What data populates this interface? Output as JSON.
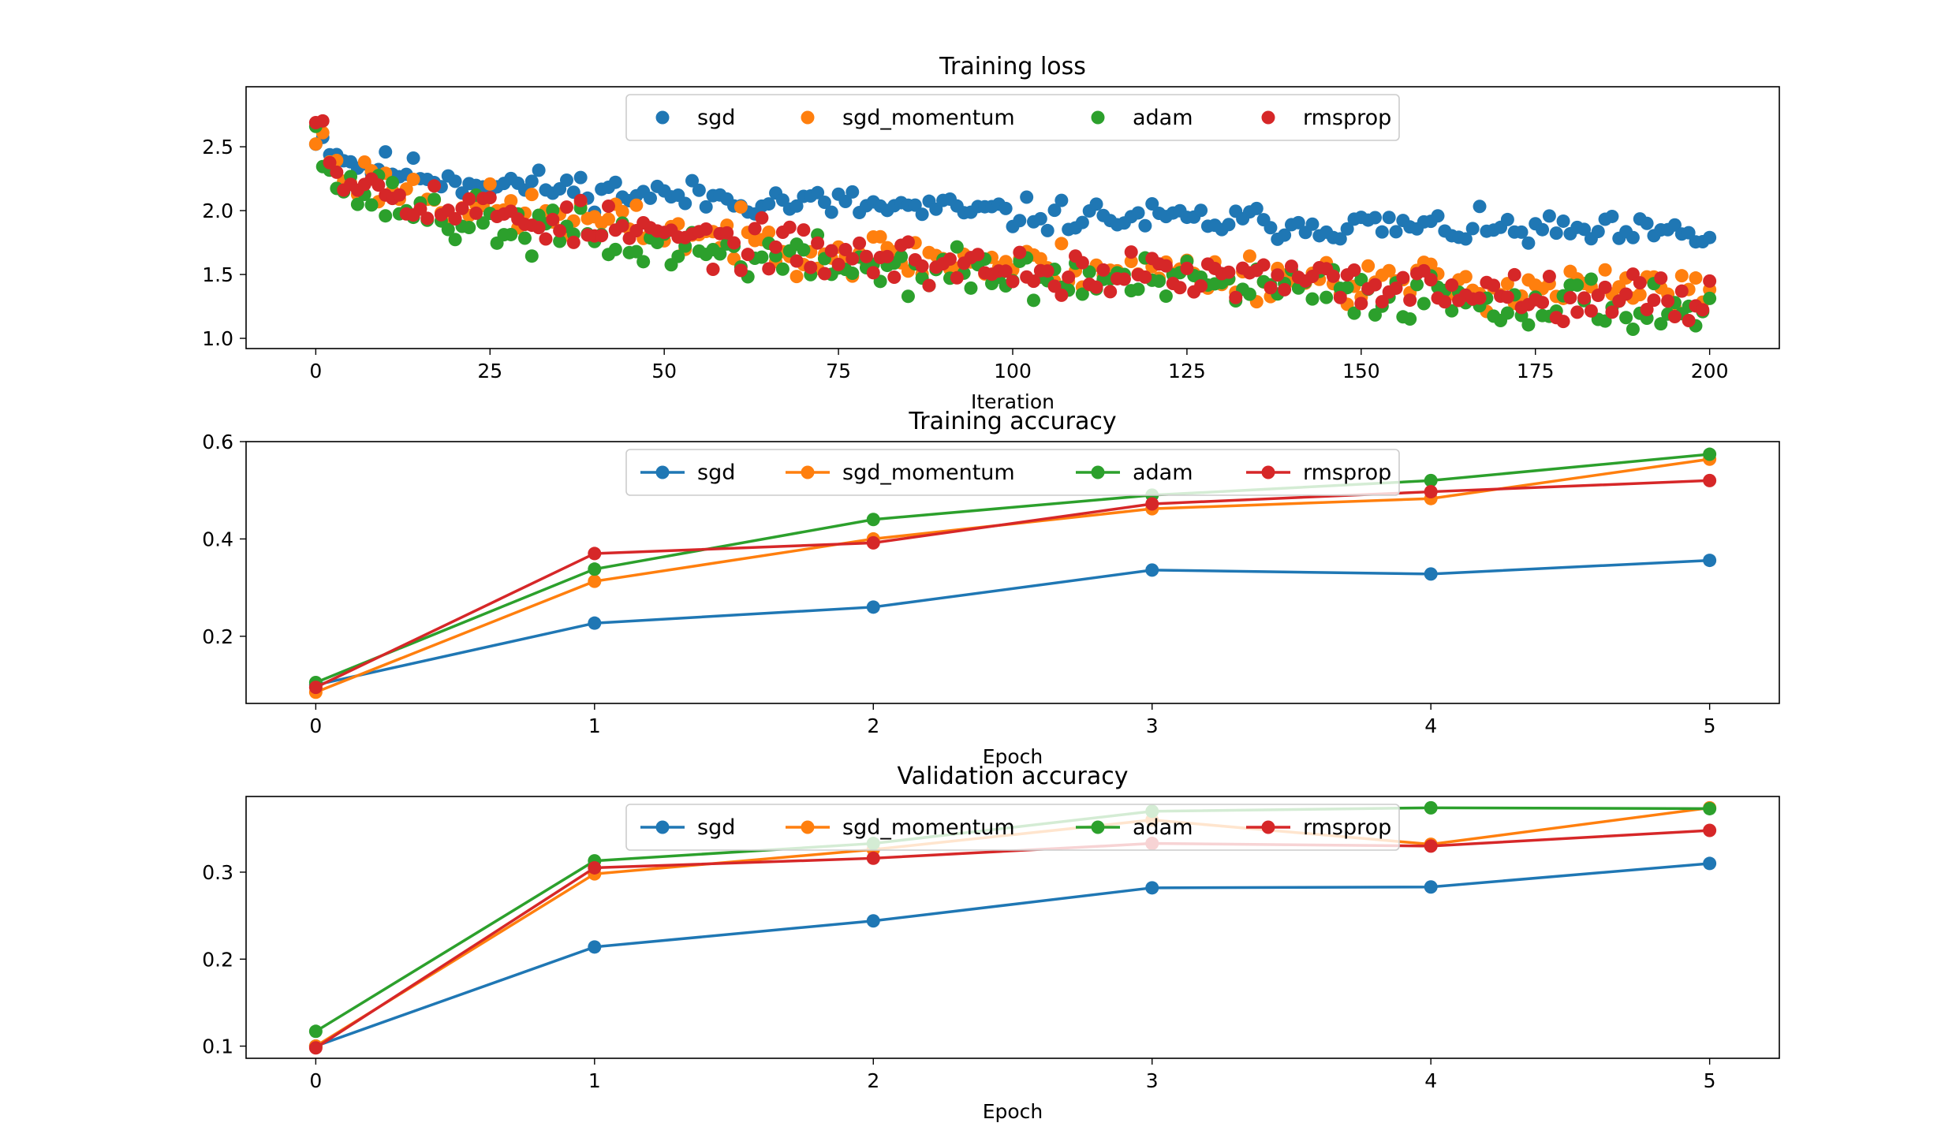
{
  "colors": {
    "sgd": "#1f77b4",
    "sgd_momentum": "#ff7f0e",
    "adam": "#2ca02c",
    "rmsprop": "#d62728",
    "frame": "#000000",
    "legend_edge": "#cccccc"
  },
  "chart_data": [
    {
      "type": "scatter",
      "title": "Training loss",
      "xlabel": "Iteration",
      "ylabel": "",
      "xlim": [
        -10,
        210
      ],
      "ylim": [
        0.92,
        2.97
      ],
      "xticks": [
        0,
        25,
        50,
        75,
        100,
        125,
        150,
        175,
        200
      ],
      "yticks": [
        1.0,
        1.5,
        2.0,
        2.5
      ],
      "ytick_labels": [
        "1.0",
        "1.5",
        "2.0",
        "2.5"
      ],
      "grid": false,
      "legend": "upper-center",
      "legend_entries": [
        "sgd",
        "sgd_momentum",
        "adam",
        "rmsprop"
      ],
      "series": [
        {
          "name": "sgd",
          "key": "sgd",
          "trend": [
            [
              0,
              2.6
            ],
            [
              5,
              2.38
            ],
            [
              20,
              2.24
            ],
            [
              50,
              2.12
            ],
            [
              75,
              2.05
            ],
            [
              100,
              1.97
            ],
            [
              150,
              1.88
            ],
            [
              200,
              1.8
            ]
          ],
          "spread": 0.09,
          "seed": 11
        },
        {
          "name": "sgd_momentum",
          "key": "sgd_momentum",
          "trend": [
            [
              0,
              2.58
            ],
            [
              4,
              2.3
            ],
            [
              20,
              2.05
            ],
            [
              50,
              1.85
            ],
            [
              75,
              1.68
            ],
            [
              100,
              1.58
            ],
            [
              150,
              1.45
            ],
            [
              200,
              1.35
            ]
          ],
          "spread": 0.13,
          "seed": 23
        },
        {
          "name": "adam",
          "key": "adam",
          "trend": [
            [
              0,
              2.75
            ],
            [
              3,
              2.2
            ],
            [
              20,
              1.92
            ],
            [
              50,
              1.72
            ],
            [
              75,
              1.58
            ],
            [
              100,
              1.48
            ],
            [
              150,
              1.36
            ],
            [
              200,
              1.22
            ]
          ],
          "spread": 0.14,
          "seed": 37
        },
        {
          "name": "rmsprop",
          "key": "rmsprop",
          "trend": [
            [
              0,
              2.88
            ],
            [
              3,
              2.3
            ],
            [
              20,
              2.02
            ],
            [
              50,
              1.8
            ],
            [
              75,
              1.65
            ],
            [
              100,
              1.53
            ],
            [
              150,
              1.42
            ],
            [
              200,
              1.3
            ]
          ],
          "spread": 0.13,
          "seed": 53
        }
      ]
    },
    {
      "type": "line",
      "title": "Training accuracy",
      "xlabel": "Epoch",
      "ylabel": "",
      "x": [
        0,
        1,
        2,
        3,
        4,
        5
      ],
      "xlim": [
        -0.25,
        5.25
      ],
      "ylim": [
        0.062,
        0.6
      ],
      "xticks": [
        0,
        1,
        2,
        3,
        4,
        5
      ],
      "yticks": [
        0.2,
        0.4,
        0.6
      ],
      "ytick_labels": [
        "0.2",
        "0.4",
        "0.6"
      ],
      "grid": false,
      "legend": "upper-center",
      "series": [
        {
          "name": "sgd",
          "key": "sgd",
          "values": [
            0.1,
            0.227,
            0.26,
            0.336,
            0.328,
            0.356
          ]
        },
        {
          "name": "sgd_momentum",
          "key": "sgd_momentum",
          "values": [
            0.085,
            0.313,
            0.4,
            0.462,
            0.483,
            0.564
          ]
        },
        {
          "name": "adam",
          "key": "adam",
          "values": [
            0.105,
            0.338,
            0.44,
            0.49,
            0.52,
            0.574
          ]
        },
        {
          "name": "rmsprop",
          "key": "rmsprop",
          "values": [
            0.095,
            0.37,
            0.392,
            0.472,
            0.497,
            0.52
          ]
        }
      ]
    },
    {
      "type": "line",
      "title": "Validation accuracy",
      "xlabel": "Epoch",
      "ylabel": "",
      "x": [
        0,
        1,
        2,
        3,
        4,
        5
      ],
      "xlim": [
        -0.25,
        5.25
      ],
      "ylim": [
        0.086,
        0.387
      ],
      "xticks": [
        0,
        1,
        2,
        3,
        4,
        5
      ],
      "yticks": [
        0.1,
        0.2,
        0.3
      ],
      "ytick_labels": [
        "0.1",
        "0.2",
        "0.3"
      ],
      "grid": false,
      "legend": "upper-center",
      "series": [
        {
          "name": "sgd",
          "key": "sgd",
          "values": [
            0.1,
            0.214,
            0.244,
            0.282,
            0.283,
            0.31
          ]
        },
        {
          "name": "sgd_momentum",
          "key": "sgd_momentum",
          "values": [
            0.1,
            0.298,
            0.326,
            0.36,
            0.332,
            0.374
          ]
        },
        {
          "name": "adam",
          "key": "adam",
          "values": [
            0.117,
            0.313,
            0.333,
            0.37,
            0.374,
            0.373
          ]
        },
        {
          "name": "rmsprop",
          "key": "rmsprop",
          "values": [
            0.098,
            0.305,
            0.316,
            0.333,
            0.33,
            0.348
          ]
        }
      ]
    }
  ]
}
